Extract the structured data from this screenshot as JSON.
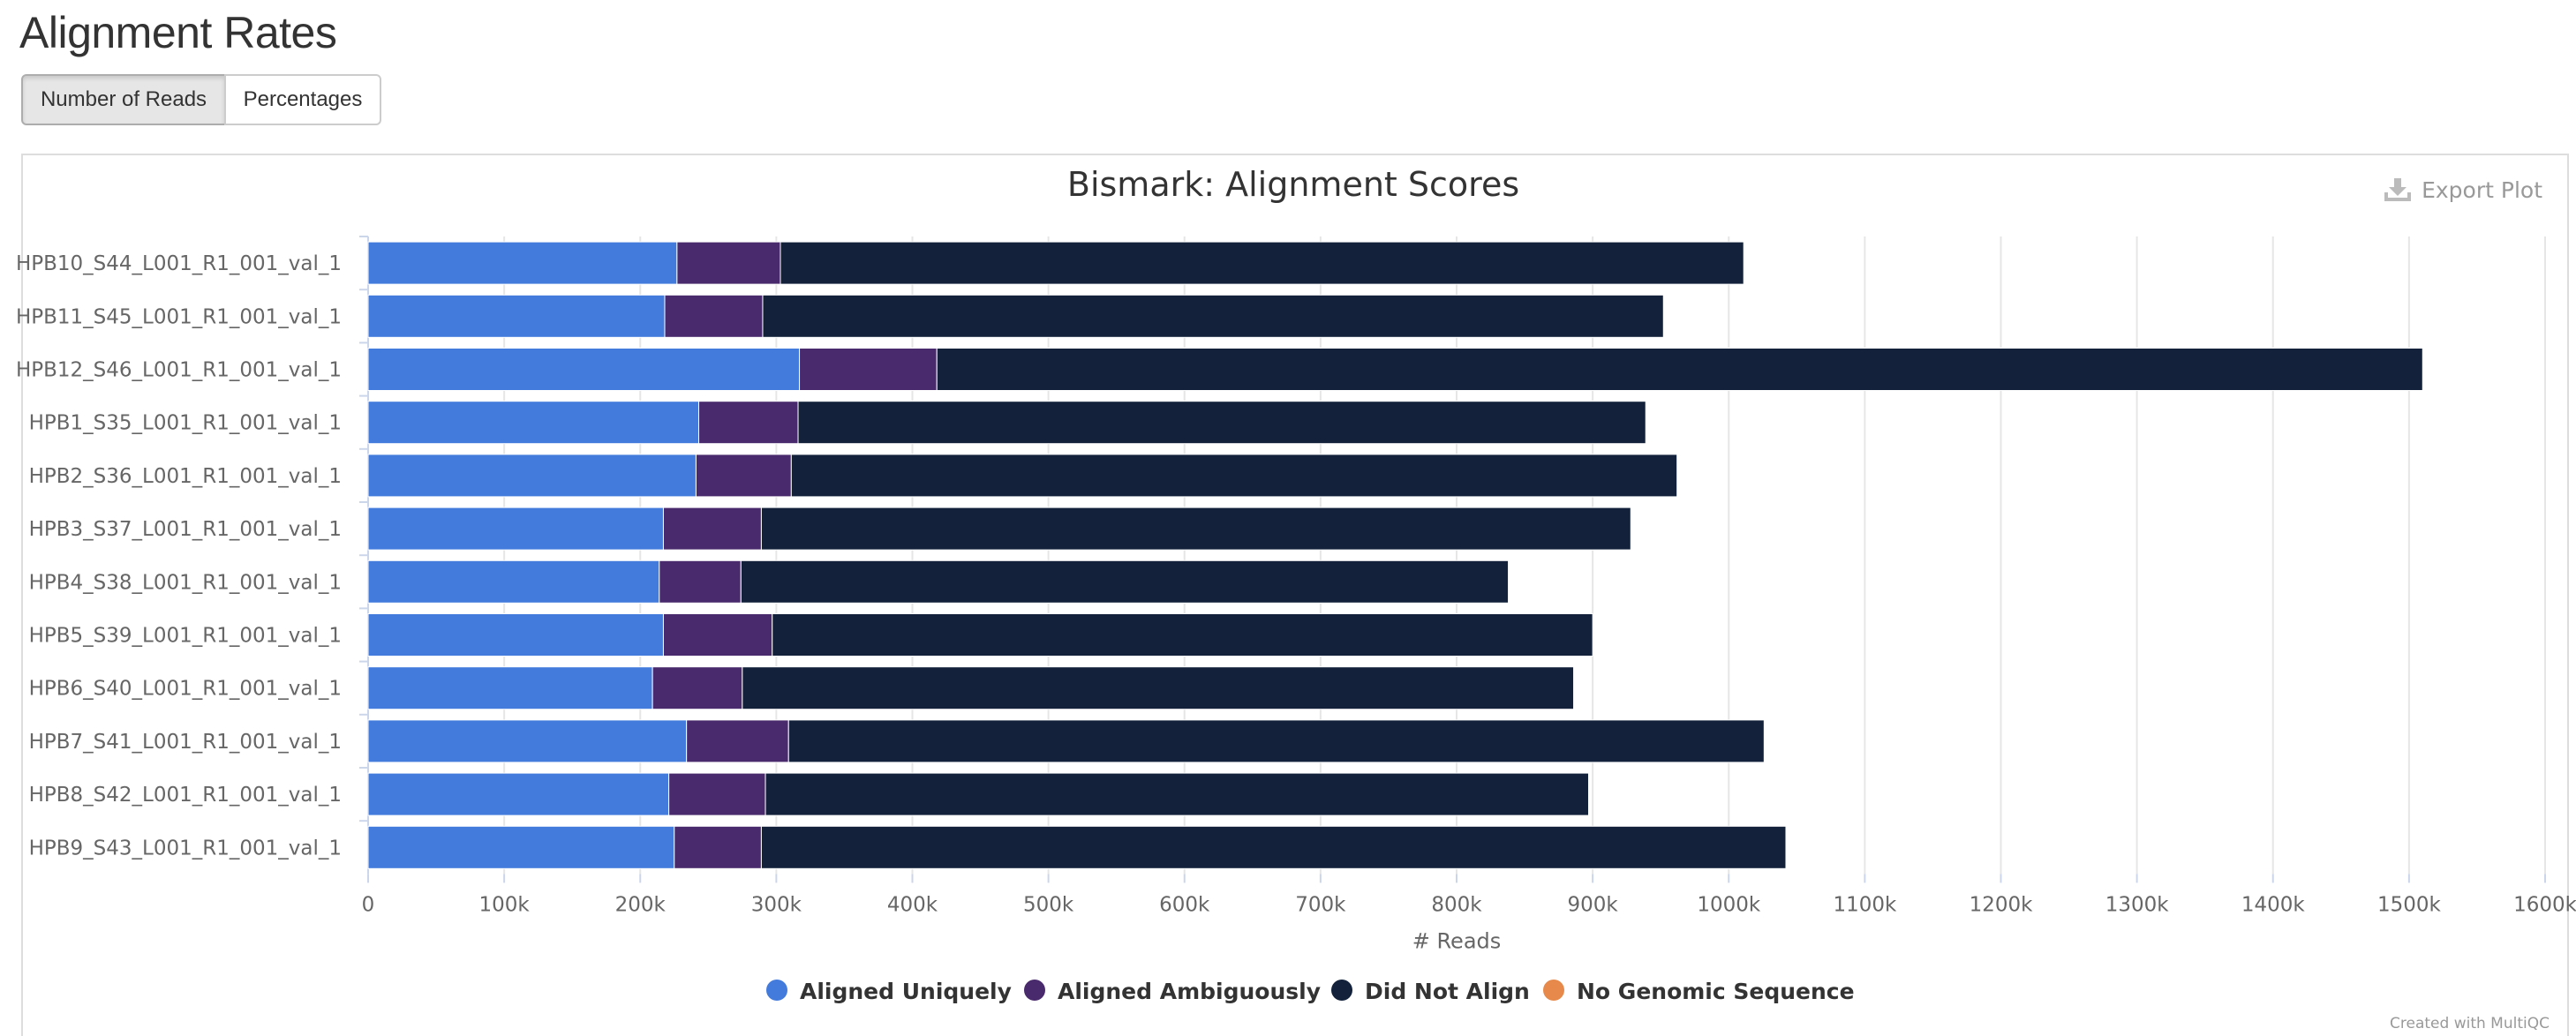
{
  "page": {
    "title": "Alignment Rates"
  },
  "toggle": {
    "reads_label": "Number of Reads",
    "percent_label": "Percentages"
  },
  "export": {
    "label": "Export Plot"
  },
  "credit": "Created with MultiQC",
  "chart_data": {
    "type": "bar",
    "orientation": "horizontal",
    "stacked": true,
    "title": "Bismark: Alignment Scores",
    "xlabel": "# Reads",
    "ylabel": "",
    "xlim": [
      0,
      1600000
    ],
    "xticks": [
      "0",
      "100k",
      "200k",
      "300k",
      "400k",
      "500k",
      "600k",
      "700k",
      "800k",
      "900k",
      "1000k",
      "1100k",
      "1200k",
      "1300k",
      "1400k",
      "1500k",
      "1600k"
    ],
    "grid": true,
    "legend_position": "bottom-center",
    "categories": [
      "HPB10_S44_L001_R1_001_val_1",
      "HPB11_S45_L001_R1_001_val_1",
      "HPB12_S46_L001_R1_001_val_1",
      "HPB1_S35_L001_R1_001_val_1",
      "HPB2_S36_L001_R1_001_val_1",
      "HPB3_S37_L001_R1_001_val_1",
      "HPB4_S38_L001_R1_001_val_1",
      "HPB5_S39_L001_R1_001_val_1",
      "HPB6_S40_L001_R1_001_val_1",
      "HPB7_S41_L001_R1_001_val_1",
      "HPB8_S42_L001_R1_001_val_1",
      "HPB9_S43_L001_R1_001_val_1"
    ],
    "series": [
      {
        "name": "Aligned Uniquely",
        "color": "#437bdc",
        "values": [
          227000,
          218000,
          317000,
          243000,
          241000,
          217000,
          214000,
          217000,
          209000,
          234000,
          221000,
          225000
        ]
      },
      {
        "name": "Aligned Ambiguously",
        "color": "#492a6c",
        "values": [
          76000,
          72000,
          101000,
          73000,
          70000,
          72000,
          60000,
          80000,
          66000,
          75000,
          71000,
          64000
        ]
      },
      {
        "name": "Did Not Align",
        "color": "#13223a",
        "values": [
          708000,
          662000,
          1092000,
          623000,
          651000,
          639000,
          564000,
          603000,
          611000,
          717000,
          605000,
          753000
        ]
      },
      {
        "name": "No Genomic Sequence",
        "color": "#e6894b",
        "values": [
          0,
          0,
          0,
          0,
          0,
          0,
          0,
          0,
          0,
          0,
          0,
          0
        ]
      }
    ]
  }
}
